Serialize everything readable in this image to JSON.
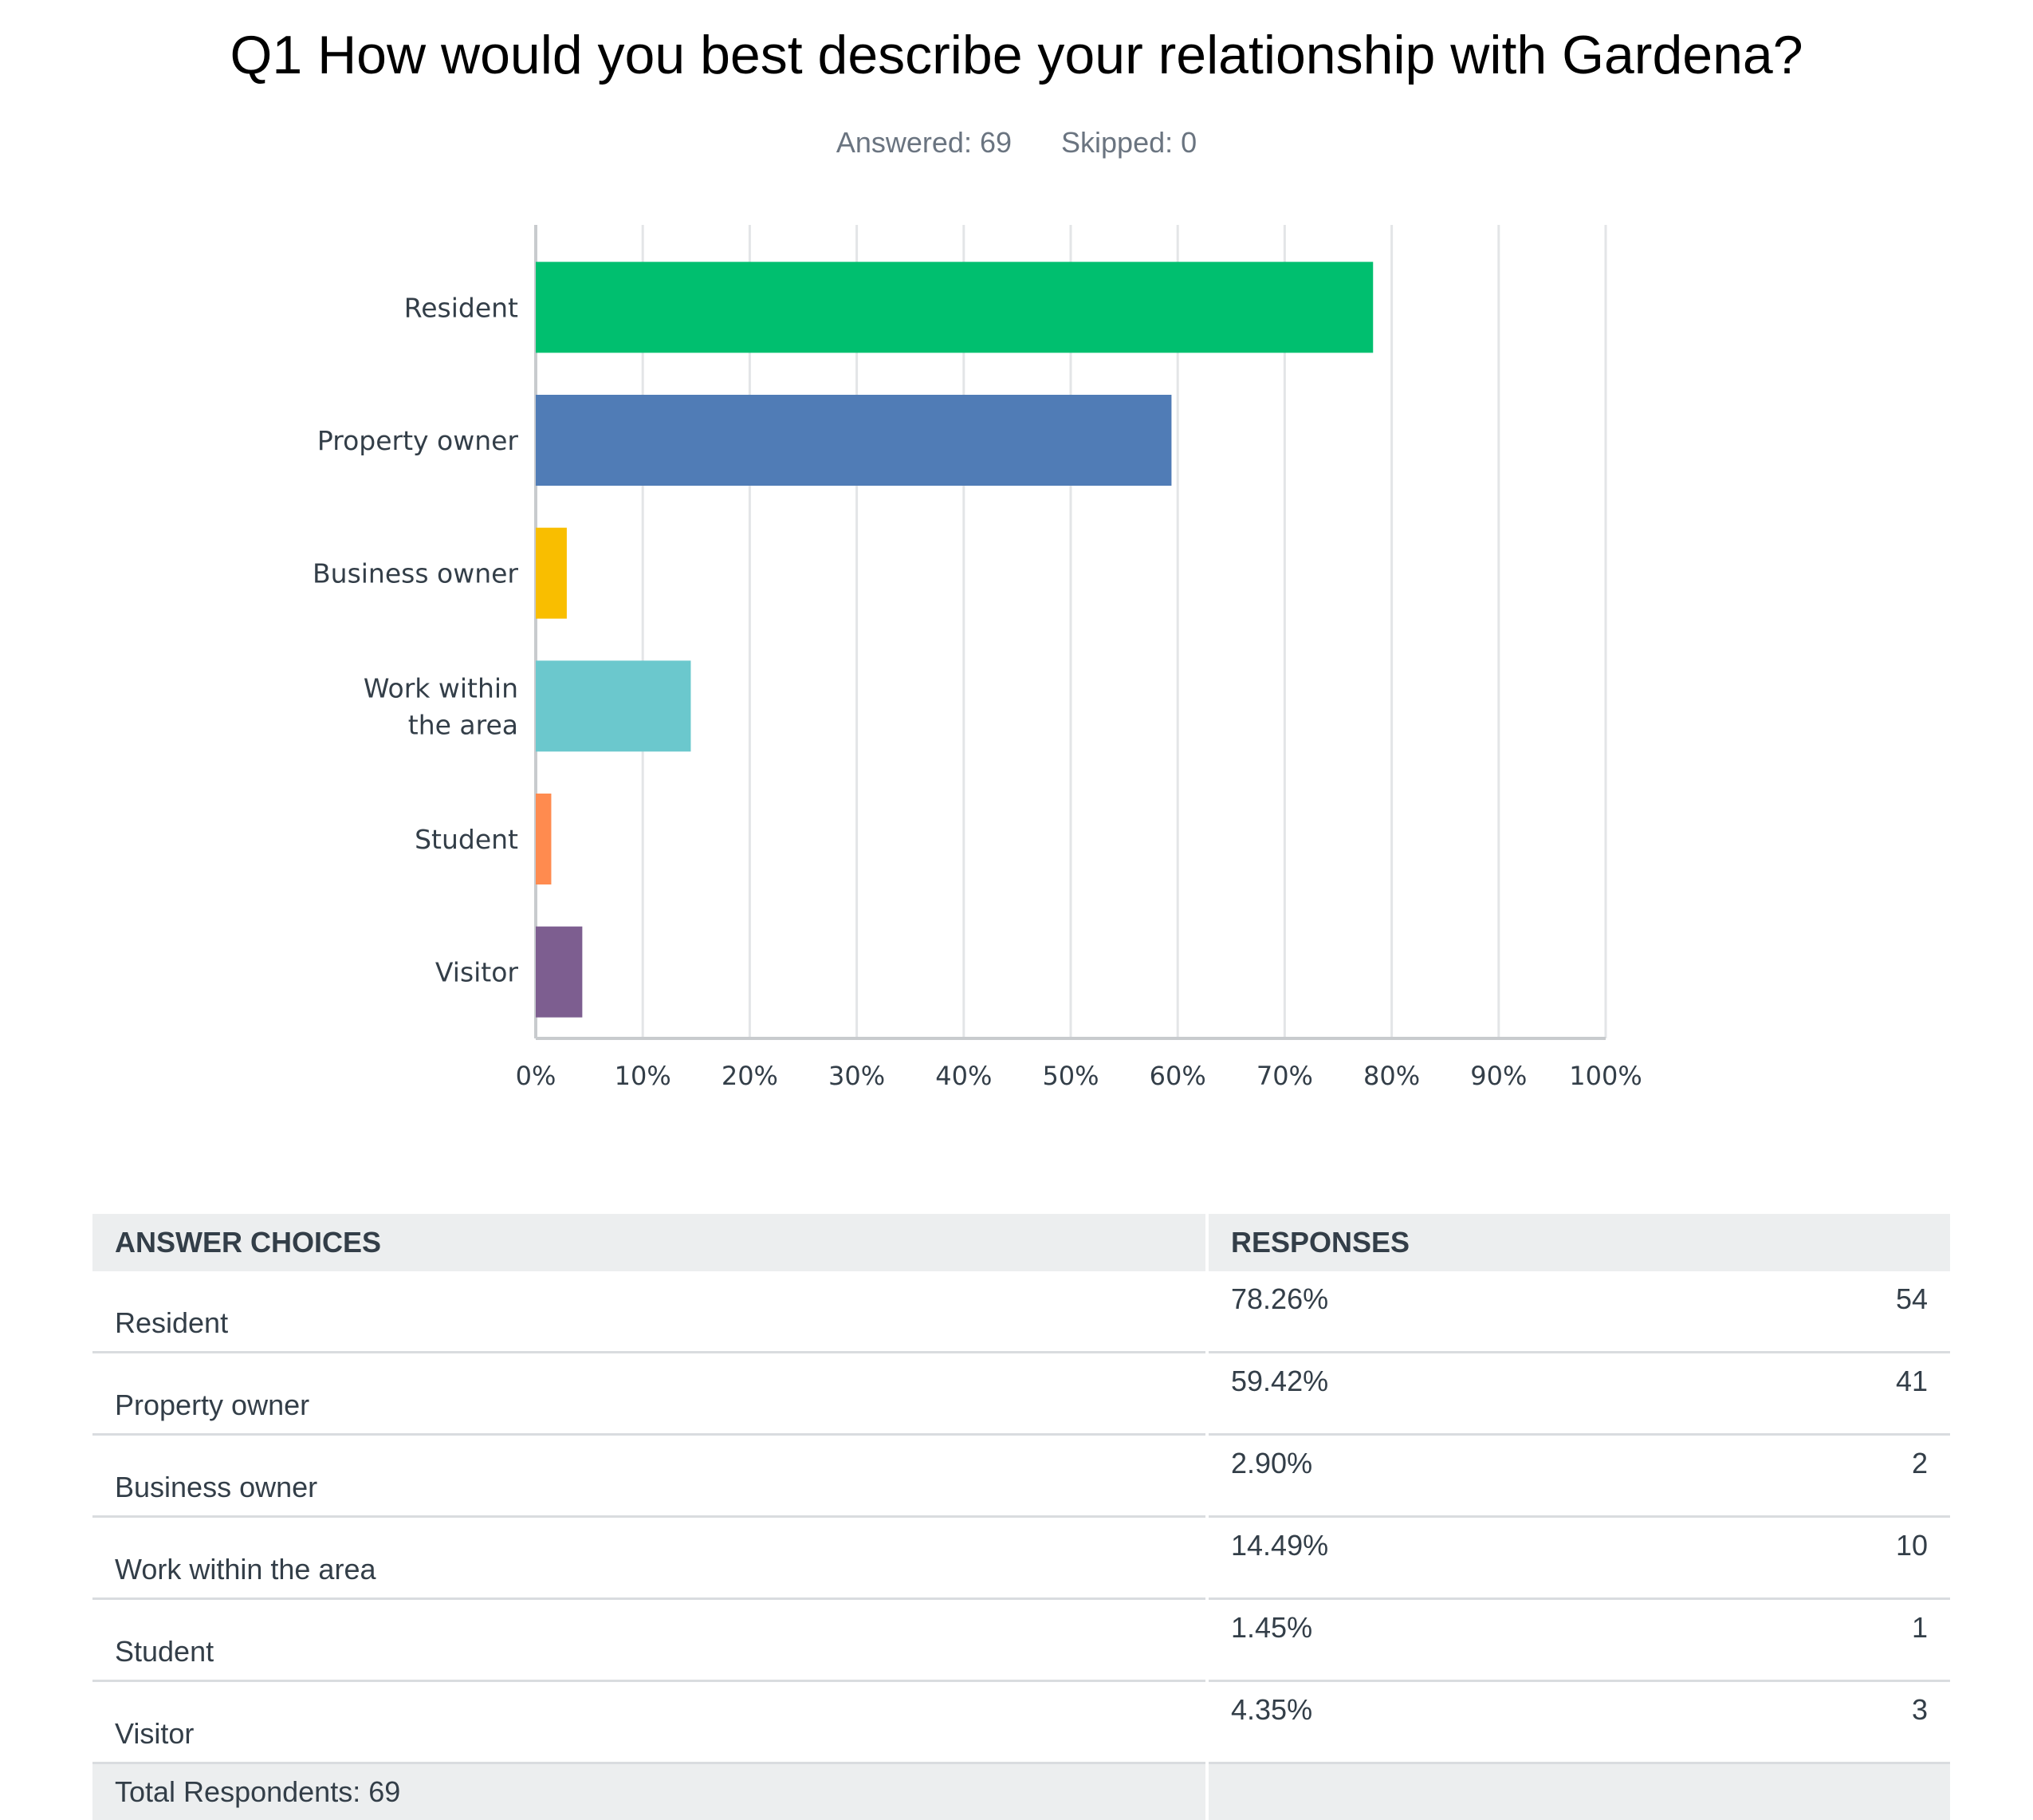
{
  "title": "Q1 How would you best describe your relationship with Gardena?",
  "answered_label": "Answered: 69",
  "skipped_label": "Skipped: 0",
  "chart_data": {
    "type": "bar",
    "orientation": "horizontal",
    "categories": [
      "Resident",
      "Property owner",
      "Business owner",
      "Work within the area",
      "Student",
      "Visitor"
    ],
    "category_lines": [
      [
        "Resident"
      ],
      [
        "Property owner"
      ],
      [
        "Business owner"
      ],
      [
        "Work within",
        "the area"
      ],
      [
        "Student"
      ],
      [
        "Visitor"
      ]
    ],
    "values": [
      78.26,
      59.42,
      2.9,
      14.49,
      1.45,
      4.35
    ],
    "colors": [
      "#00bf6f",
      "#507cb6",
      "#f9be00",
      "#6bc8cd",
      "#ff8b4f",
      "#7d5e90"
    ],
    "xlim": [
      0,
      100
    ],
    "xticks": [
      "0%",
      "10%",
      "20%",
      "30%",
      "40%",
      "50%",
      "60%",
      "70%",
      "80%",
      "90%",
      "100%"
    ],
    "grid": true
  },
  "table": {
    "headers": [
      "ANSWER CHOICES",
      "RESPONSES"
    ],
    "rows": [
      {
        "choice": "Resident",
        "percent": "78.26%",
        "count": "54"
      },
      {
        "choice": "Property owner",
        "percent": "59.42%",
        "count": "41"
      },
      {
        "choice": "Business owner",
        "percent": "2.90%",
        "count": "2"
      },
      {
        "choice": "Work within the area",
        "percent": "14.49%",
        "count": "10"
      },
      {
        "choice": "Student",
        "percent": "1.45%",
        "count": "1"
      },
      {
        "choice": "Visitor",
        "percent": "4.35%",
        "count": "3"
      }
    ],
    "total": "Total Respondents: 69"
  }
}
